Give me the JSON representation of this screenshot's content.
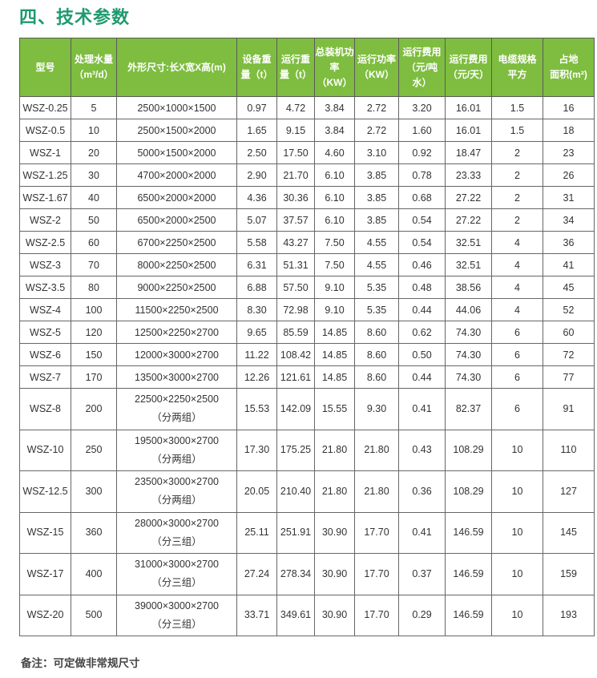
{
  "title": "四、技术参数",
  "table": {
    "headers": [
      [
        "型号"
      ],
      [
        "处理水量",
        "（m³/d）"
      ],
      [
        "外形尺寸:长X宽X高(m)"
      ],
      [
        "设备重",
        "量（t）"
      ],
      [
        "运行重",
        "量（t）"
      ],
      [
        "总装机功",
        "率（KW）"
      ],
      [
        "运行功率",
        "（KW）"
      ],
      [
        "运行费用",
        "（元/吨",
        "水）"
      ],
      [
        "运行费用",
        "（元/天）"
      ],
      [
        "电缆规格",
        "平方"
      ],
      [
        "占地",
        "面积(m²)"
      ]
    ],
    "rows": [
      {
        "cells": [
          "WSZ-0.25",
          "5",
          "2500×1000×1500",
          "0.97",
          "4.72",
          "3.84",
          "2.72",
          "3.20",
          "16.01",
          "1.5",
          "16"
        ]
      },
      {
        "cells": [
          "WSZ-0.5",
          "10",
          "2500×1500×2000",
          "1.65",
          "9.15",
          "3.84",
          "2.72",
          "1.60",
          "16.01",
          "1.5",
          "18"
        ]
      },
      {
        "cells": [
          "WSZ-1",
          "20",
          "5000×1500×2000",
          "2.50",
          "17.50",
          "4.60",
          "3.10",
          "0.92",
          "18.47",
          "2",
          "23"
        ]
      },
      {
        "cells": [
          "WSZ-1.25",
          "30",
          "4700×2000×2000",
          "2.90",
          "21.70",
          "6.10",
          "3.85",
          "0.78",
          "23.33",
          "2",
          "26"
        ]
      },
      {
        "cells": [
          "WSZ-1.67",
          "40",
          "6500×2000×2000",
          "4.36",
          "30.36",
          "6.10",
          "3.85",
          "0.68",
          "27.22",
          "2",
          "31"
        ]
      },
      {
        "cells": [
          "WSZ-2",
          "50",
          "6500×2000×2500",
          "5.07",
          "37.57",
          "6.10",
          "3.85",
          "0.54",
          "27.22",
          "2",
          "34"
        ]
      },
      {
        "cells": [
          "WSZ-2.5",
          "60",
          "6700×2250×2500",
          "5.58",
          "43.27",
          "7.50",
          "4.55",
          "0.54",
          "32.51",
          "4",
          "36"
        ]
      },
      {
        "cells": [
          "WSZ-3",
          "70",
          "8000×2250×2500",
          "6.31",
          "51.31",
          "7.50",
          "4.55",
          "0.46",
          "32.51",
          "4",
          "41"
        ]
      },
      {
        "cells": [
          "WSZ-3.5",
          "80",
          "9000×2250×2500",
          "6.88",
          "57.50",
          "9.10",
          "5.35",
          "0.48",
          "38.56",
          "4",
          "45"
        ]
      },
      {
        "cells": [
          "WSZ-4",
          "100",
          "11500×2250×2500",
          "8.30",
          "72.98",
          "9.10",
          "5.35",
          "0.44",
          "44.06",
          "4",
          "52"
        ]
      },
      {
        "cells": [
          "WSZ-5",
          "120",
          "12500×2250×2700",
          "9.65",
          "85.59",
          "14.85",
          "8.60",
          "0.62",
          "74.30",
          "6",
          "60"
        ]
      },
      {
        "cells": [
          "WSZ-6",
          "150",
          "12000×3000×2700",
          "11.22",
          "108.42",
          "14.85",
          "8.60",
          "0.50",
          "74.30",
          "6",
          "72"
        ]
      },
      {
        "cells": [
          "WSZ-7",
          "170",
          "13500×3000×2700",
          "12.26",
          "121.61",
          "14.85",
          "8.60",
          "0.44",
          "74.30",
          "6",
          "77"
        ]
      },
      {
        "cells": [
          "WSZ-8",
          "200",
          "22500×2250×2500",
          "15.53",
          "142.09",
          "15.55",
          "9.30",
          "0.41",
          "82.37",
          "6",
          "91"
        ],
        "sub": "（分两组）"
      },
      {
        "cells": [
          "WSZ-10",
          "250",
          "19500×3000×2700",
          "17.30",
          "175.25",
          "21.80",
          "21.80",
          "0.43",
          "108.29",
          "10",
          "110"
        ],
        "sub": "（分两组）"
      },
      {
        "cells": [
          "WSZ-12.5",
          "300",
          "23500×3000×2700",
          "20.05",
          "210.40",
          "21.80",
          "21.80",
          "0.36",
          "108.29",
          "10",
          "127"
        ],
        "sub": "（分两组）"
      },
      {
        "cells": [
          "WSZ-15",
          "360",
          "28000×3000×2700",
          "25.11",
          "251.91",
          "30.90",
          "17.70",
          "0.41",
          "146.59",
          "10",
          "145"
        ],
        "sub": "（分三组）"
      },
      {
        "cells": [
          "WSZ-17",
          "400",
          "31000×3000×2700",
          "27.24",
          "278.34",
          "30.90",
          "17.70",
          "0.37",
          "146.59",
          "10",
          "159"
        ],
        "sub": "（分三组）"
      },
      {
        "cells": [
          "WSZ-20",
          "500",
          "39000×3000×2700",
          "33.71",
          "349.61",
          "30.90",
          "17.70",
          "0.29",
          "146.59",
          "10",
          "193"
        ],
        "sub": "（分三组）"
      }
    ]
  },
  "note": "备注：可定做非常规尺寸",
  "colors": {
    "header_bg": "#7ebd3f",
    "title": "#1f9a6e"
  }
}
